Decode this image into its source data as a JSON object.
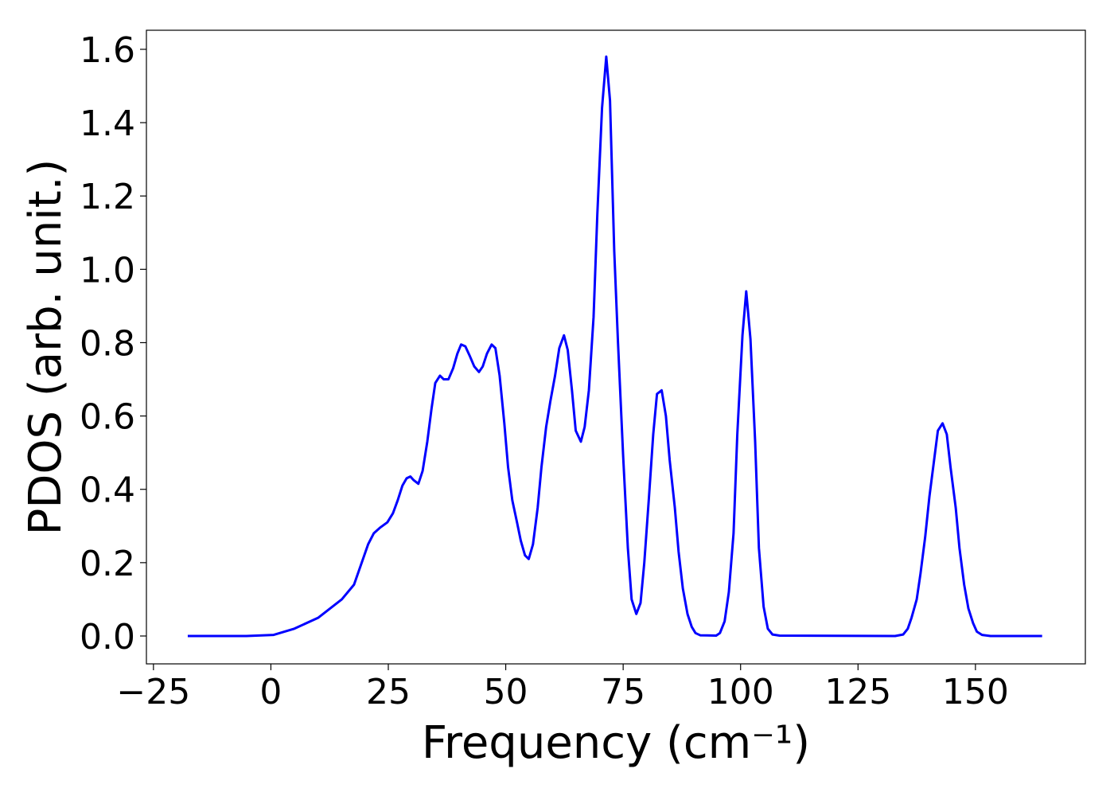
{
  "chart_data": {
    "type": "line",
    "xlabel": "Frequency (cm⁻¹)",
    "ylabel": "PDOS (arb. unit.)",
    "color": "#0000ff",
    "x": [
      -17.7,
      -5.2,
      0.6,
      5,
      10.1,
      15.1,
      17.7,
      20.7,
      21.9,
      23.2,
      24.8,
      26,
      27,
      28,
      28.9,
      29.7,
      30.4,
      31.4,
      32.3,
      33.3,
      34.2,
      35,
      36,
      36.8,
      37.8,
      38.8,
      39.7,
      40.5,
      41.4,
      42.3,
      43.3,
      44.3,
      45.1,
      46,
      47,
      47.8,
      48.7,
      49.7,
      50.5,
      51.4,
      52.4,
      53.2,
      54.1,
      54.9,
      55.8,
      56.8,
      57.6,
      58.6,
      59.5,
      60.5,
      61.4,
      62.4,
      63.2,
      64.1,
      64.9,
      66,
      66.8,
      67.7,
      68.7,
      69.5,
      70.5,
      71.4,
      72.2,
      73.1,
      73.9,
      75,
      76,
      76.8,
      77.8,
      78.7,
      79.5,
      80.5,
      81.4,
      82.2,
      83.2,
      84.1,
      84.9,
      86,
      86.8,
      87.7,
      88.7,
      89.6,
      90.4,
      91.4,
      94.8,
      95.6,
      96.6,
      97.5,
      98.5,
      99.3,
      100.4,
      101.2,
      102.1,
      103.1,
      103.9,
      104.9,
      105.8,
      106.8,
      108.3,
      132.9,
      134.6,
      135.6,
      136.4,
      137.5,
      138.3,
      139.3,
      140.2,
      141.2,
      142,
      143,
      143.9,
      144.7,
      145.8,
      146.6,
      147.6,
      148.5,
      149.5,
      150.3,
      151.4,
      153.2,
      164.2
    ],
    "values": [
      0,
      0,
      0.003,
      0.02,
      0.05,
      0.1,
      0.14,
      0.25,
      0.28,
      0.295,
      0.31,
      0.335,
      0.37,
      0.41,
      0.43,
      0.435,
      0.425,
      0.415,
      0.45,
      0.53,
      0.62,
      0.69,
      0.71,
      0.7,
      0.7,
      0.73,
      0.77,
      0.795,
      0.79,
      0.765,
      0.735,
      0.72,
      0.735,
      0.77,
      0.795,
      0.785,
      0.71,
      0.58,
      0.46,
      0.37,
      0.31,
      0.26,
      0.22,
      0.21,
      0.25,
      0.35,
      0.46,
      0.57,
      0.64,
      0.71,
      0.785,
      0.82,
      0.78,
      0.67,
      0.56,
      0.53,
      0.57,
      0.67,
      0.87,
      1.15,
      1.44,
      1.58,
      1.46,
      1.05,
      0.8,
      0.49,
      0.24,
      0.1,
      0.06,
      0.09,
      0.2,
      0.38,
      0.55,
      0.66,
      0.67,
      0.6,
      0.48,
      0.35,
      0.23,
      0.13,
      0.06,
      0.025,
      0.008,
      0.002,
      0.001,
      0.008,
      0.04,
      0.12,
      0.28,
      0.55,
      0.82,
      0.94,
      0.81,
      0.53,
      0.24,
      0.08,
      0.02,
      0.004,
      0.001,
      0,
      0.004,
      0.02,
      0.05,
      0.1,
      0.17,
      0.27,
      0.38,
      0.48,
      0.56,
      0.58,
      0.55,
      0.46,
      0.35,
      0.24,
      0.14,
      0.075,
      0.035,
      0.012,
      0.003,
      0,
      0
    ],
    "xlim": [
      -26.5,
      173.4
    ],
    "ylim": [
      -0.076,
      1.652
    ],
    "xticks": [
      {
        "value": -25,
        "label": "−25"
      },
      0,
      25,
      50,
      75,
      100,
      125,
      150
    ],
    "yticks": [
      {
        "value": 0,
        "label": "0.0"
      },
      0.2,
      0.4,
      0.6,
      0.8,
      {
        "value": 1,
        "label": "1.0"
      },
      1.2,
      1.4,
      1.6
    ],
    "grid": false
  }
}
